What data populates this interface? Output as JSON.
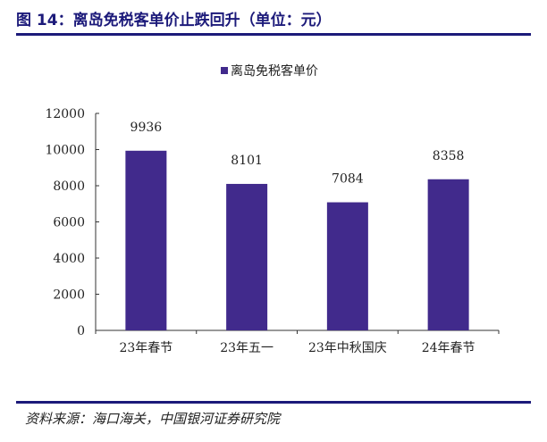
{
  "header": {
    "title": "图 14：离岛免税客单价止跌回升（单位：元）"
  },
  "footer": {
    "source": "资料来源：海口海关，中国银河证券研究院"
  },
  "colors": {
    "accent": "#1c1a7a",
    "bar": "#412a8c"
  },
  "chart_data": {
    "type": "bar",
    "categories": [
      "23年春节",
      "23年五一",
      "23年中秋国庆",
      "24年春节"
    ],
    "series": [
      {
        "name": "离岛免税客单价",
        "values": [
          9936,
          8101,
          7084,
          8358
        ]
      }
    ],
    "ylim": [
      0,
      12000
    ],
    "yticks": [
      0,
      2000,
      4000,
      6000,
      8000,
      10000,
      12000
    ],
    "legend": "top-center",
    "grid": false
  }
}
